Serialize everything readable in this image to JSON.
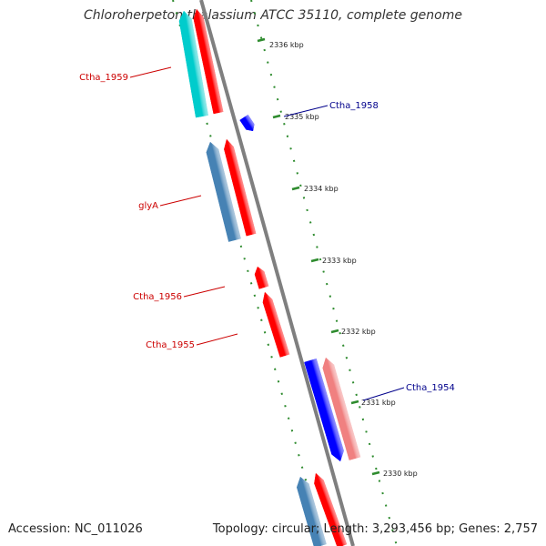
{
  "title": "Chloroherpeton thalassium ATCC 35110, complete genome",
  "footer": {
    "accession": "Accession: NC_011026",
    "summary": "Topology: circular; Length: 3,293,456 bp; Genes: 2,757"
  },
  "colors": {
    "backbone": "#7f7f7f",
    "tick": "#2e8b2e",
    "label_red": "#cc0000",
    "label_blue": "#00008b"
  },
  "ticks": [
    {
      "label": "2336 kbp"
    },
    {
      "label": "2335 kbp"
    },
    {
      "label": "2334 kbp"
    },
    {
      "label": "2333 kbp"
    },
    {
      "label": "2332 kbp"
    },
    {
      "label": "2331 kbp"
    },
    {
      "label": "2330 kbp"
    }
  ],
  "genes": [
    {
      "label": "Ctha_1959",
      "color": "#00cccc"
    },
    {
      "label": "",
      "color": "#ff0000"
    },
    {
      "label": "Ctha_1958",
      "color": "#0000ff"
    },
    {
      "label": "",
      "color": "#4682b4"
    },
    {
      "label": "glyA",
      "color": "#ff0000"
    },
    {
      "label": "Ctha_1956",
      "color": "#ff0000"
    },
    {
      "label": "Ctha_1955",
      "color": "#ff0000"
    },
    {
      "label": "",
      "color": "#0000ff"
    },
    {
      "label": "Ctha_1954",
      "color": "#f08080"
    },
    {
      "label": "",
      "color": "#4682b4"
    },
    {
      "label": "",
      "color": "#ff0000"
    }
  ]
}
